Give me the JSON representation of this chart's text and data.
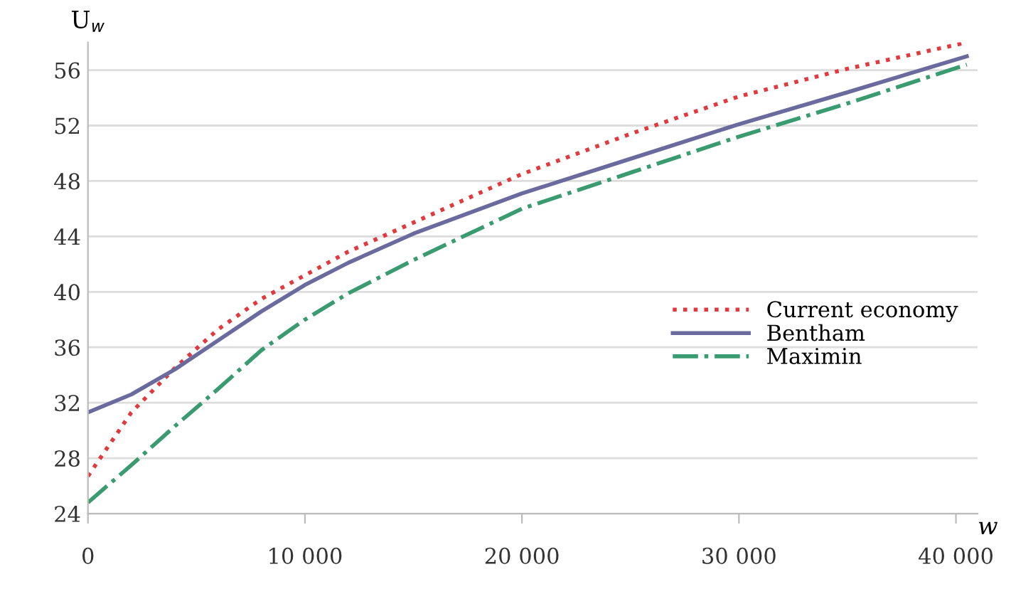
{
  "chart_data": {
    "type": "line",
    "ylabel": "U$_{w}$",
    "xlabel": "w",
    "x": [
      0,
      2000,
      4000,
      6000,
      8000,
      10000,
      12000,
      15000,
      20000,
      25000,
      30000,
      35000,
      40500
    ],
    "series": [
      {
        "name": "Current economy",
        "color": "#e03a3e",
        "line_style": "dotted",
        "values": [
          26.7,
          31.3,
          34.5,
          37.3,
          39.5,
          41.2,
          42.9,
          45,
          48.5,
          51.4,
          54.1,
          56.1,
          58.0
        ]
      },
      {
        "name": "Bentham",
        "color": "#6a6a9e",
        "line_style": "solid",
        "values": [
          31.3,
          32.6,
          34.4,
          36.5,
          38.6,
          40.5,
          42.1,
          44.2,
          47.1,
          49.6,
          52.1,
          54.4,
          57.0
        ]
      },
      {
        "name": "Maximin",
        "color": "#3a9a70",
        "line_style": "dashdot",
        "values": [
          24.8,
          27.5,
          30.3,
          33,
          35.8,
          38,
          39.9,
          42.3,
          46.0,
          48.6,
          51.2,
          53.6,
          56.4
        ]
      }
    ],
    "xlim": [
      0,
      41000
    ],
    "xticks": [
      0,
      {
        "value": 10000,
        "label": "10 000"
      },
      {
        "value": 20000,
        "label": "20 000"
      },
      {
        "value": 30000,
        "label": "30 000"
      },
      {
        "value": 40000,
        "label": "40 000"
      }
    ],
    "ylim": [
      24,
      58
    ],
    "yticks": [
      24,
      28,
      32,
      36,
      40,
      44,
      48,
      52,
      56
    ],
    "grid": "y",
    "legend": "right",
    "marker": "none"
  }
}
